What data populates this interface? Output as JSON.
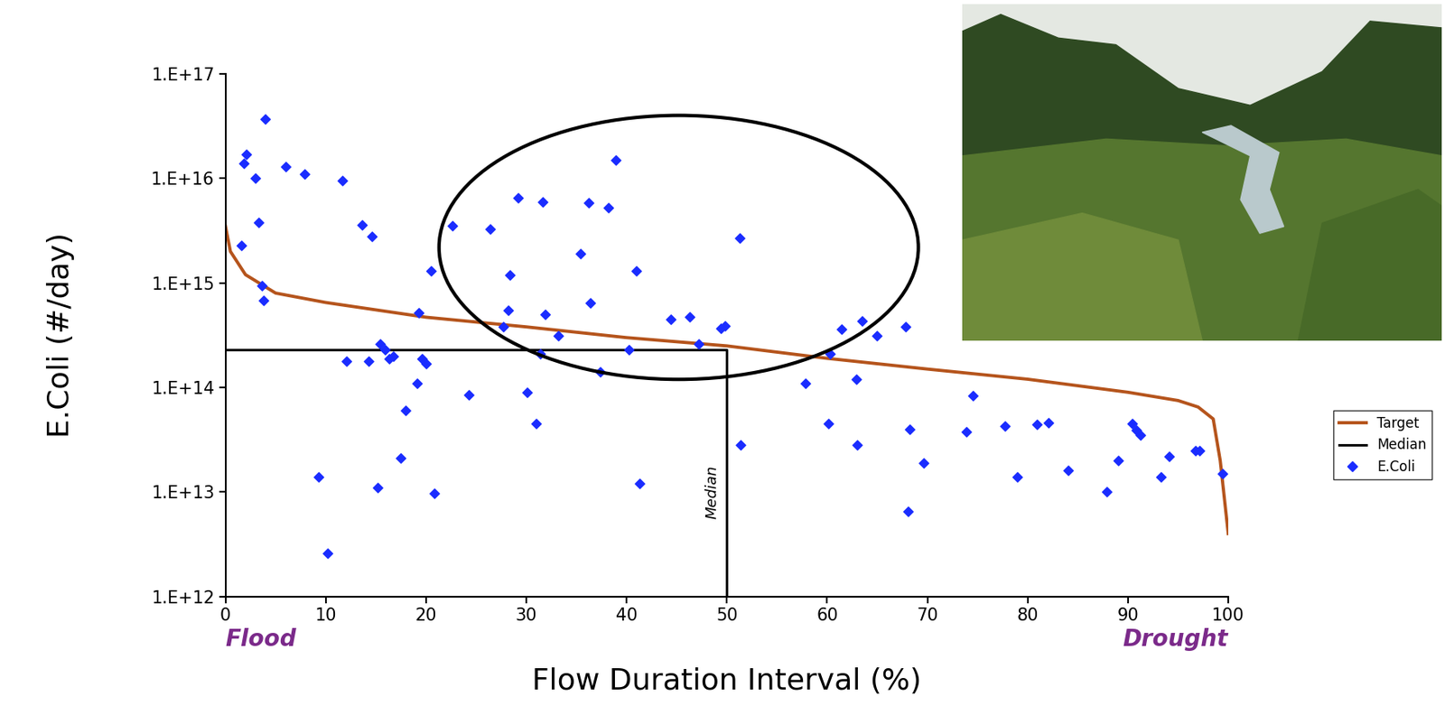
{
  "chart_data": {
    "type": "scatter",
    "xlabel": "Flow Duration Interval (%)",
    "ylabel": "E.Coli (#/day)",
    "annotations": [
      "Flood",
      "Drought",
      "Median"
    ],
    "log": "y",
    "grid": false,
    "legend": "center left",
    "xlim": [
      0,
      100
    ],
    "xticks": [
      0,
      10,
      20,
      30,
      40,
      50,
      60,
      70,
      80,
      90,
      100
    ],
    "ylim": [
      1000000000000.0,
      1e+17
    ],
    "yticks": [
      {
        "value": 1000000000000.0,
        "label": "1.E+12"
      },
      {
        "value": 10000000000000.0,
        "label": "1.E+13"
      },
      {
        "value": 100000000000000.0,
        "label": "1.E+14"
      },
      {
        "value": 1000000000000000.0,
        "label": "1.E+15"
      },
      {
        "value": 1e+16,
        "label": "1.E+16"
      },
      {
        "value": 1e+17,
        "label": "1.E+17"
      }
    ],
    "series": [
      {
        "name": "Target",
        "type": "line",
        "color": "#b5541c",
        "line_style": "solid",
        "x": [
          0,
          0.5,
          2,
          5,
          10,
          20,
          30,
          40,
          50,
          60,
          70,
          80,
          90,
          95,
          97,
          98.5,
          99.2,
          100
        ],
        "values": [
          3500000000000000.0,
          2000000000000000.0,
          1200000000000000.0,
          800000000000000.0,
          650000000000000.0,
          470000000000000.0,
          380000000000000.0,
          300000000000000.0,
          250000000000000.0,
          190000000000000.0,
          150000000000000.0,
          120000000000000.0,
          90000000000000.0,
          75000000000000.0,
          65000000000000.0,
          50000000000000.0,
          20000000000000.0,
          4000000000000.0
        ]
      },
      {
        "name": "Median",
        "type": "median",
        "color": "#000000",
        "line_style": "solid",
        "x": [
          50
        ],
        "values": [
          230000000000000.0
        ]
      },
      {
        "name": "E.Coli",
        "type": "scatter",
        "color": "#1a2cff",
        "marker": "diamond",
        "x": [
          1.6,
          1.8,
          2.1,
          3.0,
          3.3,
          3.6,
          3.8,
          4.0,
          6.0,
          7.9,
          9.3,
          10.2,
          11.7,
          12.1,
          13.6,
          14.3,
          14.6,
          15.2,
          15.4,
          15.9,
          16.3,
          16.7,
          17.5,
          18.0,
          19.1,
          19.3,
          19.6,
          20.0,
          20.5,
          20.8,
          22.6,
          24.3,
          26.4,
          27.7,
          28.2,
          28.4,
          29.2,
          30.1,
          31.0,
          31.4,
          31.6,
          31.9,
          33.2,
          35.4,
          36.2,
          36.4,
          37.4,
          38.2,
          38.9,
          40.2,
          41.0,
          41.3,
          44.4,
          46.3,
          47.2,
          49.4,
          49.8,
          51.3,
          51.4,
          57.8,
          60.1,
          60.3,
          61.4,
          62.9,
          63.0,
          63.5,
          65.0,
          67.8,
          68.1,
          68.2,
          69.6,
          73.9,
          74.5,
          77.7,
          79.0,
          80.9,
          82.1,
          84.0,
          87.9,
          89.0,
          90.4,
          90.8,
          91.2,
          93.3,
          94.1,
          96.7,
          97.1,
          99.4
        ],
        "values": [
          2300000000000000.0,
          1.4e+16,
          1.7e+16,
          1e+16,
          3800000000000000.0,
          950000000000000.0,
          680000000000000.0,
          3.7e+16,
          1.3e+16,
          1.1e+16,
          14000000000000.0,
          2600000000000.0,
          9500000000000000.0,
          180000000000000.0,
          3600000000000000.0,
          180000000000000.0,
          2800000000000000.0,
          11000000000000.0,
          260000000000000.0,
          230000000000000.0,
          190000000000000.0,
          200000000000000.0,
          21000000000000.0,
          60000000000000.0,
          110000000000000.0,
          520000000000000.0,
          190000000000000.0,
          170000000000000.0,
          1300000000000000.0,
          9800000000000.0,
          3500000000000000.0,
          85000000000000.0,
          3300000000000000.0,
          380000000000000.0,
          550000000000000.0,
          1200000000000000.0,
          6500000000000000.0,
          90000000000000.0,
          45000000000000.0,
          210000000000000.0,
          6000000000000000.0,
          500000000000000.0,
          310000000000000.0,
          1900000000000000.0,
          5800000000000000.0,
          650000000000000.0,
          140000000000000.0,
          5200000000000000.0,
          1.5e+16,
          230000000000000.0,
          1300000000000000.0,
          12000000000000.0,
          450000000000000.0,
          470000000000000.0,
          260000000000000.0,
          370000000000000.0,
          390000000000000.0,
          2700000000000000.0,
          28000000000000.0,
          110000000000000.0,
          45000000000000.0,
          210000000000000.0,
          360000000000000.0,
          120000000000000.0,
          28000000000000.0,
          430000000000000.0,
          310000000000000.0,
          380000000000000.0,
          6500000000000.0,
          40000000000000.0,
          19000000000000.0,
          38000000000000.0,
          83000000000000.0,
          43000000000000.0,
          14000000000000.0,
          44000000000000.0,
          46000000000000.0,
          16000000000000.0,
          10000000000000.0,
          20000000000000.0,
          45000000000000.0,
          39000000000000.0,
          35000000000000.0,
          14000000000000.0,
          22000000000000.0,
          25000000000000.0,
          25000000000000.0,
          15000000000000.0
        ]
      }
    ]
  }
}
